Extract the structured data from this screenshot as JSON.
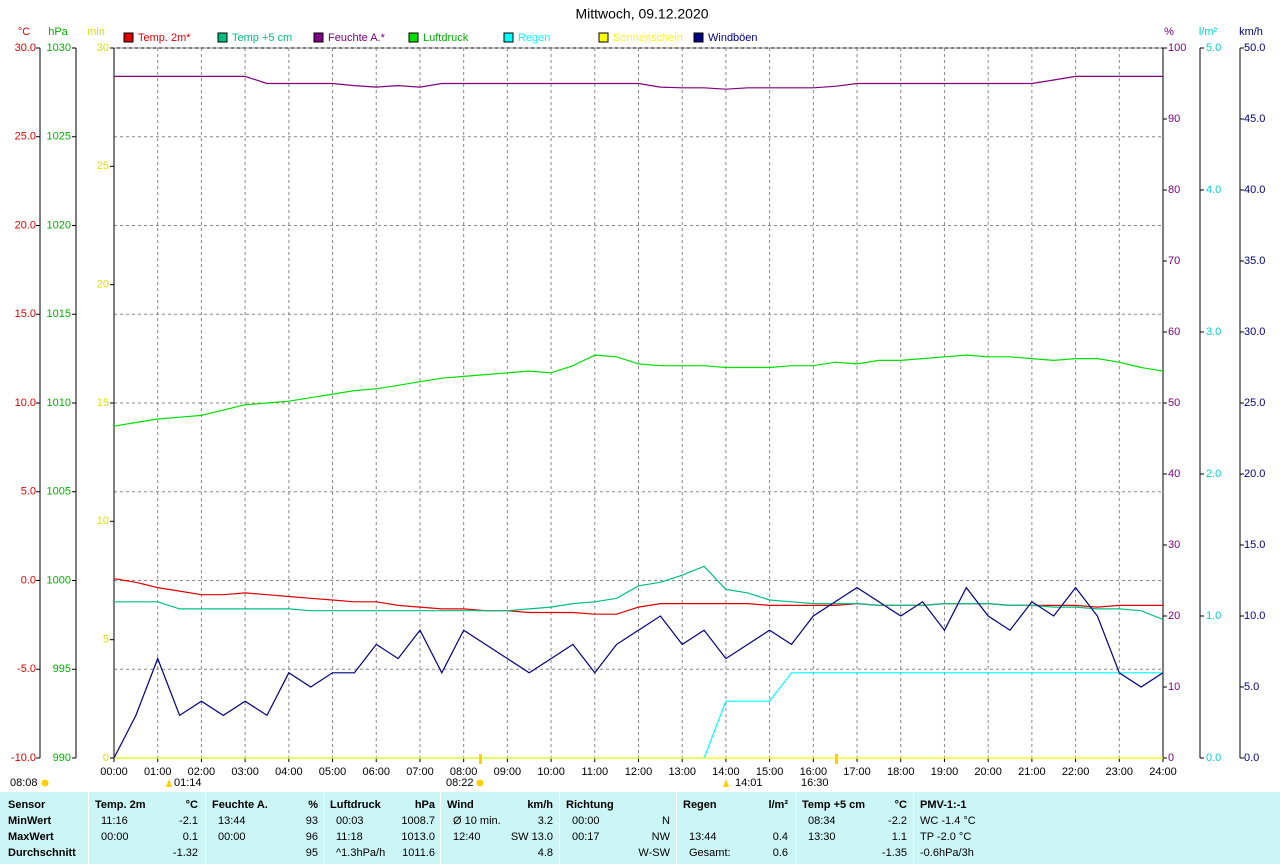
{
  "chart_data": {
    "type": "line",
    "title": "Mittwoch, 09.12.2020",
    "x": [
      0,
      0.5,
      1,
      1.5,
      2,
      2.5,
      3,
      3.5,
      4,
      4.5,
      5,
      5.5,
      6,
      6.5,
      7,
      7.5,
      8,
      8.5,
      9,
      9.5,
      10,
      10.5,
      11,
      11.5,
      12,
      12.5,
      13,
      13.5,
      14,
      14.5,
      15,
      15.5,
      16,
      16.5,
      17,
      17.5,
      18,
      18.5,
      19,
      19.5,
      20,
      20.5,
      21,
      21.5,
      22,
      22.5,
      23,
      23.5,
      24
    ],
    "xlim": [
      0,
      24
    ],
    "xticks": [
      {
        "value": 0,
        "label": "00:00"
      },
      {
        "value": 1,
        "label": "01:00"
      },
      {
        "value": 2,
        "label": "02:00"
      },
      {
        "value": 3,
        "label": "03:00"
      },
      {
        "value": 4,
        "label": "04:00"
      },
      {
        "value": 5,
        "label": "05:00"
      },
      {
        "value": 6,
        "label": "06:00"
      },
      {
        "value": 7,
        "label": "07:00"
      },
      {
        "value": 8,
        "label": "08:00"
      },
      {
        "value": 9,
        "label": "09:00"
      },
      {
        "value": 10,
        "label": "10:00"
      },
      {
        "value": 11,
        "label": "11:00"
      },
      {
        "value": 12,
        "label": "12:00"
      },
      {
        "value": 13,
        "label": "13:00"
      },
      {
        "value": 14,
        "label": "14:00"
      },
      {
        "value": 15,
        "label": "15:00"
      },
      {
        "value": 16,
        "label": "16:00"
      },
      {
        "value": 17,
        "label": "17:00"
      },
      {
        "value": 18,
        "label": "18:00"
      },
      {
        "value": 19,
        "label": "19:00"
      },
      {
        "value": 20,
        "label": "20:00"
      },
      {
        "value": 21,
        "label": "21:00"
      },
      {
        "value": 22,
        "label": "22:00"
      },
      {
        "value": 23,
        "label": "23:00"
      },
      {
        "value": 24,
        "label": "24:00"
      }
    ],
    "grid": true,
    "axes": [
      {
        "unit": "°C",
        "color": "#e00000",
        "lim": [
          -10,
          30
        ],
        "ticks": [
          {
            "value": -10,
            "label": "-10.0"
          },
          {
            "value": -5,
            "label": "-5.0"
          },
          {
            "value": 0,
            "label": "0.0"
          },
          {
            "value": 5,
            "label": "5.0"
          },
          {
            "value": 10,
            "label": "10.0"
          },
          {
            "value": 15,
            "label": "15.0"
          },
          {
            "value": 20,
            "label": "20.0"
          },
          {
            "value": 25,
            "label": "25.0"
          },
          {
            "value": 30,
            "label": "30.0"
          }
        ]
      },
      {
        "unit": "hPa",
        "color": "#00b000",
        "lim": [
          990,
          1030
        ],
        "ticks": [
          990,
          995,
          1000,
          1005,
          1010,
          1015,
          1020,
          1025,
          1030
        ]
      },
      {
        "unit": "min",
        "color": "#e0e000",
        "lim": [
          0,
          30
        ],
        "ticks": [
          0,
          5,
          10,
          15,
          20,
          25,
          30
        ]
      },
      {
        "unit": "%",
        "color": "#800080",
        "lim": [
          0,
          100
        ],
        "ticks": [
          0,
          10,
          20,
          30,
          40,
          50,
          60,
          70,
          80,
          90,
          100
        ]
      },
      {
        "unit": "l/m²",
        "color": "#00d0d0",
        "lim": [
          0,
          5
        ],
        "ticks": [
          {
            "value": 0,
            "label": "0.0"
          },
          {
            "value": 1,
            "label": "1.0"
          },
          {
            "value": 2,
            "label": "2.0"
          },
          {
            "value": 3,
            "label": "3.0"
          },
          {
            "value": 4,
            "label": "4.0"
          },
          {
            "value": 5,
            "label": "5.0"
          }
        ]
      },
      {
        "unit": "km/h",
        "color": "#000080",
        "lim": [
          0,
          50
        ],
        "ticks": [
          {
            "value": 0,
            "label": "0.0"
          },
          {
            "value": 5,
            "label": "5.0"
          },
          {
            "value": 10,
            "label": "10.0"
          },
          {
            "value": 15,
            "label": "15.0"
          },
          {
            "value": 20,
            "label": "20.0"
          },
          {
            "value": 25,
            "label": "25.0"
          },
          {
            "value": 30,
            "label": "30.0"
          },
          {
            "value": 35,
            "label": "35.0"
          },
          {
            "value": 40,
            "label": "40.0"
          },
          {
            "value": 45,
            "label": "45.0"
          },
          {
            "value": 50,
            "label": "50.0"
          }
        ]
      }
    ],
    "series": [
      {
        "name": "Temp. 2m*",
        "color": "#e00000",
        "axis": 0,
        "values": [
          0.1,
          -0.1,
          -0.4,
          -0.6,
          -0.8,
          -0.8,
          -0.7,
          -0.8,
          -0.9,
          -1.0,
          -1.1,
          -1.2,
          -1.2,
          -1.4,
          -1.5,
          -1.6,
          -1.6,
          -1.7,
          -1.7,
          -1.8,
          -1.8,
          -1.8,
          -1.9,
          -1.9,
          -1.5,
          -1.3,
          -1.3,
          -1.3,
          -1.3,
          -1.3,
          -1.4,
          -1.4,
          -1.4,
          -1.4,
          -1.3,
          -1.4,
          -1.4,
          -1.4,
          -1.3,
          -1.3,
          -1.3,
          -1.4,
          -1.4,
          -1.4,
          -1.4,
          -1.5,
          -1.4,
          -1.4,
          -1.4
        ]
      },
      {
        "name": "Temp +5 cm",
        "color": "#00c080",
        "axis": 0,
        "values": [
          -1.2,
          -1.2,
          -1.2,
          -1.6,
          -1.6,
          -1.6,
          -1.6,
          -1.6,
          -1.6,
          -1.7,
          -1.7,
          -1.7,
          -1.7,
          -1.7,
          -1.7,
          -1.7,
          -1.7,
          -1.7,
          -1.7,
          -1.6,
          -1.5,
          -1.3,
          -1.2,
          -1.0,
          -0.3,
          -0.1,
          0.3,
          0.8,
          -0.5,
          -0.7,
          -1.1,
          -1.2,
          -1.3,
          -1.3,
          -1.3,
          -1.4,
          -1.4,
          -1.4,
          -1.3,
          -1.3,
          -1.3,
          -1.4,
          -1.4,
          -1.5,
          -1.5,
          -1.6,
          -1.6,
          -1.7,
          -2.2
        ]
      },
      {
        "name": "Feuchte A.*",
        "color": "#800080",
        "axis": 3,
        "values": [
          96,
          96,
          96,
          96,
          96,
          96,
          96,
          95,
          95,
          95,
          95,
          94.7,
          94.5,
          94.7,
          94.5,
          95,
          95,
          95,
          95,
          95,
          95,
          95,
          95,
          95,
          95,
          94.5,
          94.4,
          94.4,
          94.2,
          94.4,
          94.4,
          94.4,
          94.4,
          94.6,
          95,
          95,
          95,
          95,
          95,
          95,
          95,
          95,
          95,
          95.5,
          96,
          96,
          96,
          96,
          96
        ]
      },
      {
        "name": "Luftdruck",
        "color": "#00e000",
        "axis": 1,
        "values": [
          1008.7,
          1008.9,
          1009.1,
          1009.2,
          1009.3,
          1009.6,
          1009.9,
          1010.0,
          1010.1,
          1010.3,
          1010.5,
          1010.7,
          1010.8,
          1011.0,
          1011.2,
          1011.4,
          1011.5,
          1011.6,
          1011.7,
          1011.8,
          1011.7,
          1012.1,
          1012.7,
          1012.6,
          1012.2,
          1012.1,
          1012.1,
          1012.1,
          1012.0,
          1012.0,
          1012.0,
          1012.1,
          1012.1,
          1012.3,
          1012.2,
          1012.4,
          1012.4,
          1012.5,
          1012.6,
          1012.7,
          1012.6,
          1012.6,
          1012.5,
          1012.4,
          1012.5,
          1012.5,
          1012.3,
          1012.0,
          1011.8
        ]
      },
      {
        "name": "Regen",
        "color": "#00ffff",
        "axis": 4,
        "values": [
          0,
          0,
          0,
          0,
          0,
          0,
          0,
          0,
          0,
          0,
          0,
          0,
          0,
          0,
          0,
          0,
          0,
          0,
          0,
          0,
          0,
          0,
          0,
          0,
          0,
          0,
          0,
          0,
          0.4,
          0.4,
          0.4,
          0.6,
          0.6,
          0.6,
          0.6,
          0.6,
          0.6,
          0.6,
          0.6,
          0.6,
          0.6,
          0.6,
          0.6,
          0.6,
          0.6,
          0.6,
          0.6,
          0.6,
          0.6
        ]
      },
      {
        "name": "Sonnenschein",
        "color": "#ffff00",
        "axis": 2,
        "values": [
          0,
          0,
          0,
          0,
          0,
          0,
          0,
          0,
          0,
          0,
          0,
          0,
          0,
          0,
          0,
          0,
          0,
          0,
          0,
          0,
          0,
          0,
          0,
          0,
          0,
          0,
          0,
          0,
          0,
          0,
          0,
          0,
          0,
          0,
          0,
          0,
          0,
          0,
          0,
          0,
          0,
          0,
          0,
          0,
          0,
          0,
          0,
          0,
          0
        ]
      },
      {
        "name": "Windböen",
        "color": "#000080",
        "axis": 5,
        "values": [
          0,
          3,
          7,
          3,
          4,
          3,
          4,
          3,
          6,
          5,
          6,
          6,
          8,
          7,
          9,
          6,
          9,
          8,
          7,
          6,
          7,
          8,
          6,
          8,
          9,
          10,
          8,
          9,
          7,
          8,
          9,
          8,
          10,
          11,
          12,
          11,
          10,
          11,
          9,
          12,
          10,
          9,
          11,
          10,
          12,
          10,
          6,
          5,
          6
        ]
      }
    ],
    "annotations": [
      "01:14",
      "08:22",
      "14:01",
      "16:30",
      "08:08"
    ]
  },
  "table": {
    "sections": [
      {
        "header": [
          "Sensor"
        ],
        "rows": [
          [
            "MinWert"
          ],
          [
            "MaxWert"
          ],
          [
            "Durchschnitt"
          ]
        ]
      },
      {
        "header": [
          "Temp. 2m",
          "°C"
        ],
        "rows": [
          [
            "11:16",
            "-2.1"
          ],
          [
            "00:00",
            "0.1"
          ],
          [
            "-1.32"
          ]
        ]
      },
      {
        "header": [
          "Feuchte A.",
          "%"
        ],
        "rows": [
          [
            "13:44",
            "93"
          ],
          [
            "00:00",
            "96"
          ],
          [
            "95"
          ]
        ]
      },
      {
        "header": [
          "Luftdruck",
          "hPa"
        ],
        "rows": [
          [
            "00:03",
            "1008.7"
          ],
          [
            "11:18",
            "1013.0"
          ],
          [
            "^1.3hPa/h",
            "1011.6"
          ]
        ]
      },
      {
        "header": [
          "Wind",
          "km/h"
        ],
        "rows": [
          [
            "Ø 10 min.",
            "3.2"
          ],
          [
            "12:40",
            "SW 13.0"
          ],
          [
            "4.8"
          ]
        ]
      },
      {
        "header": [
          "Richtung"
        ],
        "rows": [
          [
            "00:00",
            "N"
          ],
          [
            "00:17",
            "NW"
          ],
          [
            "W-SW"
          ]
        ]
      },
      {
        "header": [
          "Regen",
          "l/m²"
        ],
        "rows": [
          [],
          [
            "13:44",
            "0.4"
          ],
          [
            "Gesamt:",
            "0.6"
          ]
        ]
      },
      {
        "header": [
          "Temp +5 cm",
          "°C"
        ],
        "rows": [
          [
            "08:34",
            "-2.2"
          ],
          [
            "13:30",
            "1.1"
          ],
          [
            "-1.35"
          ]
        ]
      },
      {
        "header": [
          "PMV-1:-1"
        ],
        "rows": [
          [
            "WC -1.4 °C"
          ],
          [
            "TP -2.0 °C"
          ],
          [
            "-0.6hPa/3h"
          ]
        ]
      }
    ]
  }
}
